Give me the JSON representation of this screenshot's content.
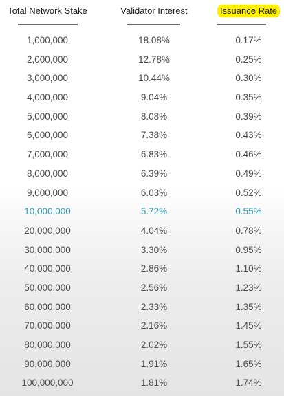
{
  "headers": {
    "stake": "Total Network Stake",
    "interest": "Validator Interest",
    "issuance": "Issuance Rate"
  },
  "highlight_color": "#fff000",
  "accent_color": "#2e9bb3",
  "highlighted_row_index": 9,
  "rows": [
    {
      "stake": "1,000,000",
      "interest": "18.08%",
      "issuance": "0.17%"
    },
    {
      "stake": "2,000,000",
      "interest": "12.78%",
      "issuance": "0.25%"
    },
    {
      "stake": "3,000,000",
      "interest": "10.44%",
      "issuance": "0.30%"
    },
    {
      "stake": "4,000,000",
      "interest": "9.04%",
      "issuance": "0.35%"
    },
    {
      "stake": "5,000,000",
      "interest": "8.08%",
      "issuance": "0.39%"
    },
    {
      "stake": "6,000,000",
      "interest": "7.38%",
      "issuance": "0.43%"
    },
    {
      "stake": "7,000,000",
      "interest": "6.83%",
      "issuance": "0.46%"
    },
    {
      "stake": "8,000,000",
      "interest": "6.39%",
      "issuance": "0.49%"
    },
    {
      "stake": "9,000,000",
      "interest": "6.03%",
      "issuance": "0.52%"
    },
    {
      "stake": "10,000,000",
      "interest": "5.72%",
      "issuance": "0.55%"
    },
    {
      "stake": "20,000,000",
      "interest": "4.04%",
      "issuance": "0.78%"
    },
    {
      "stake": "30,000,000",
      "interest": "3.30%",
      "issuance": "0.95%"
    },
    {
      "stake": "40,000,000",
      "interest": "2.86%",
      "issuance": "1.10%"
    },
    {
      "stake": "50,000,000",
      "interest": "2.56%",
      "issuance": "1.23%"
    },
    {
      "stake": "60,000,000",
      "interest": "2.33%",
      "issuance": "1.35%"
    },
    {
      "stake": "70,000,000",
      "interest": "2.16%",
      "issuance": "1.45%"
    },
    {
      "stake": "80,000,000",
      "interest": "2.02%",
      "issuance": "1.55%"
    },
    {
      "stake": "90,000,000",
      "interest": "1.91%",
      "issuance": "1.65%"
    },
    {
      "stake": "100,000,000",
      "interest": "1.81%",
      "issuance": "1.74%"
    }
  ]
}
